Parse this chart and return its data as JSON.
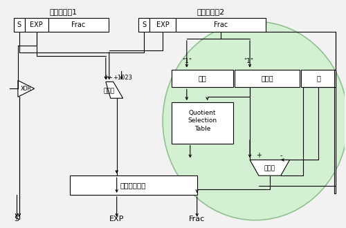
{
  "fig_w": 5.0,
  "fig_h": 3.3,
  "dpi": 100,
  "bg": "#f2f2f2",
  "green_fill": "#d0f0d0",
  "green_edge": "#88bb88",
  "box_fc": "#ffffff",
  "box_ec": "#000000",
  "lw": 0.8,
  "operand1_label": "オペランド1",
  "operand2_label": "オペランド2",
  "label_s": "S",
  "label_exp": "EXP",
  "label_frac": "Frac",
  "label_xor": "XOR",
  "label_ada": "アダー",
  "label_plus1023": "+1023",
  "label_josuu": "除数",
  "label_hijosuu": "被除数",
  "label_shou": "商",
  "label_qst1": "Quotient",
  "label_qst2": "Selection",
  "label_qst3": "Table",
  "label_marumelogic": "丸めロジック",
  "label_one": "\"1\"",
  "label_plus": "+",
  "label_minus": "-",
  "label_S_out": "S",
  "label_EXP_out": "EXP",
  "label_Frac_out": "Frac"
}
